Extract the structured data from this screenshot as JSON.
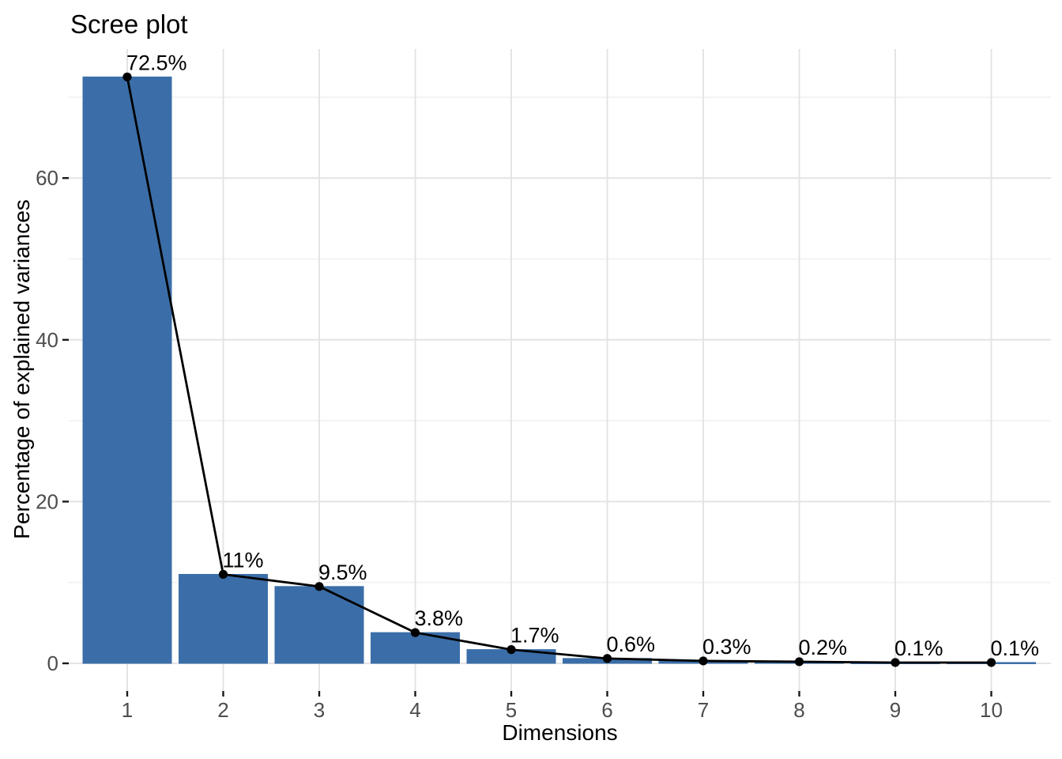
{
  "chart_data": {
    "type": "bar",
    "overlay": "line-with-points",
    "title": "Scree plot",
    "xlabel": "Dimensions",
    "ylabel": "Percentage of explained variances",
    "categories": [
      "1",
      "2",
      "3",
      "4",
      "5",
      "6",
      "7",
      "8",
      "9",
      "10"
    ],
    "values": [
      72.5,
      11,
      9.5,
      3.8,
      1.7,
      0.6,
      0.3,
      0.2,
      0.1,
      0.1
    ],
    "point_labels": [
      "72.5%",
      "11%",
      "9.5%",
      "3.8%",
      "1.7%",
      "0.6%",
      "0.3%",
      "0.2%",
      "0.1%",
      "0.1%"
    ],
    "y_ticks": [
      0,
      20,
      40,
      60
    ],
    "y_minor_ticks": [
      10,
      30,
      50,
      70
    ],
    "ylim": [
      0,
      76
    ],
    "grid": "on",
    "legend": "none",
    "style": {
      "bar_fill": "#3B6EA8",
      "line_color": "#000000",
      "point_color": "#000000",
      "label_color": "#000000",
      "grid_major_color": "#E4E4E4",
      "grid_minor_color": "#F0F0F0",
      "axis_tick_color": "#1A1A1A",
      "tick_label_color": "#4D4D4D",
      "background": "#FFFFFF"
    }
  }
}
